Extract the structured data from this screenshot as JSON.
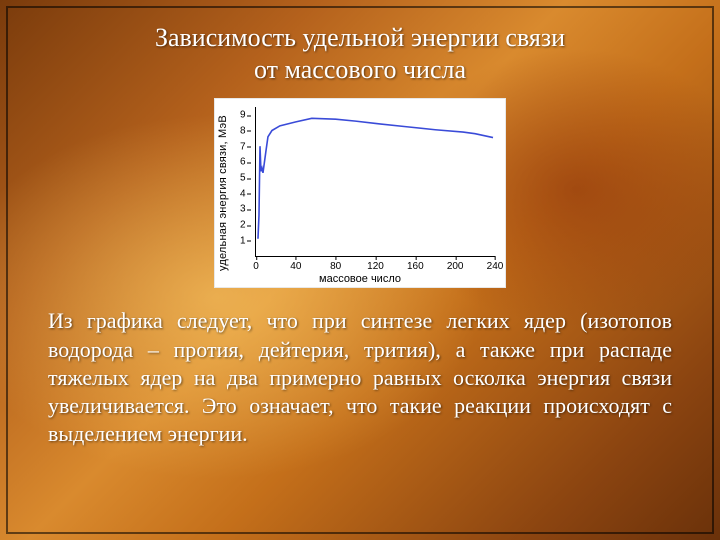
{
  "title_line1": "Зависимость удельной энергии связи",
  "title_line2": "от массового числа",
  "body_text": "Из графика следует, что при синтезе легких ядер (изотопов водорода – протия, дейтерия, трития), а также при распаде тяжелых ядер на два примерно равных осколка энергия связи увеличивается. Это означает, что такие реакции происходят с выделением энергии.",
  "chart": {
    "type": "line",
    "ylabel": "удельная энергия связи, МэВ",
    "xlabel": "массовое число",
    "xlim": [
      0,
      240
    ],
    "ylim": [
      0,
      9.5
    ],
    "yticks": [
      1,
      2,
      3,
      4,
      5,
      6,
      7,
      8,
      9
    ],
    "xticks": [
      0,
      40,
      80,
      120,
      160,
      200,
      240
    ],
    "line_color": "#3a4bd8",
    "line_width": 1.6,
    "axis_color": "#000000",
    "background_color": "#ffffff",
    "label_fontsize": 11,
    "tick_fontsize": 10,
    "series": [
      {
        "x": 2,
        "y": 1.1
      },
      {
        "x": 3,
        "y": 2.6
      },
      {
        "x": 4,
        "y": 7.0
      },
      {
        "x": 5,
        "y": 5.4
      },
      {
        "x": 6,
        "y": 5.6
      },
      {
        "x": 7,
        "y": 5.3
      },
      {
        "x": 10,
        "y": 6.7
      },
      {
        "x": 12,
        "y": 7.6
      },
      {
        "x": 16,
        "y": 8.0
      },
      {
        "x": 24,
        "y": 8.3
      },
      {
        "x": 40,
        "y": 8.55
      },
      {
        "x": 56,
        "y": 8.78
      },
      {
        "x": 80,
        "y": 8.72
      },
      {
        "x": 100,
        "y": 8.6
      },
      {
        "x": 120,
        "y": 8.45
      },
      {
        "x": 150,
        "y": 8.25
      },
      {
        "x": 180,
        "y": 8.05
      },
      {
        "x": 208,
        "y": 7.9
      },
      {
        "x": 220,
        "y": 7.8
      },
      {
        "x": 238,
        "y": 7.55
      }
    ]
  },
  "colors": {
    "slide_text": "#ffffff",
    "slide_shadow": "rgba(0,0,0,0.55)"
  }
}
